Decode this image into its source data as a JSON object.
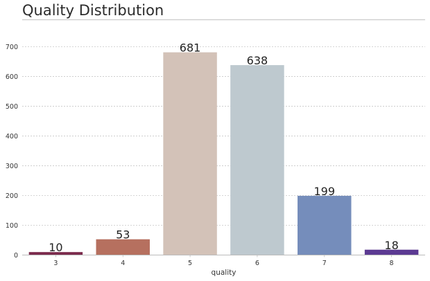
{
  "chart_data": {
    "type": "bar",
    "title": "Quality Distribution",
    "xlabel": "quality",
    "ylabel": "",
    "categories": [
      "3",
      "4",
      "5",
      "6",
      "7",
      "8"
    ],
    "values": [
      10,
      53,
      681,
      638,
      199,
      18
    ],
    "data_labels": [
      "10",
      "53",
      "681",
      "638",
      "199",
      "18"
    ],
    "colors": [
      "#7b2a4c",
      "#b6705f",
      "#d3c2b8",
      "#bec9cf",
      "#758dbb",
      "#5c3a92"
    ],
    "ylim": [
      0,
      780
    ],
    "yticks": [
      0,
      100,
      200,
      300,
      400,
      500,
      600,
      700
    ],
    "grid": true,
    "legend": "none"
  }
}
